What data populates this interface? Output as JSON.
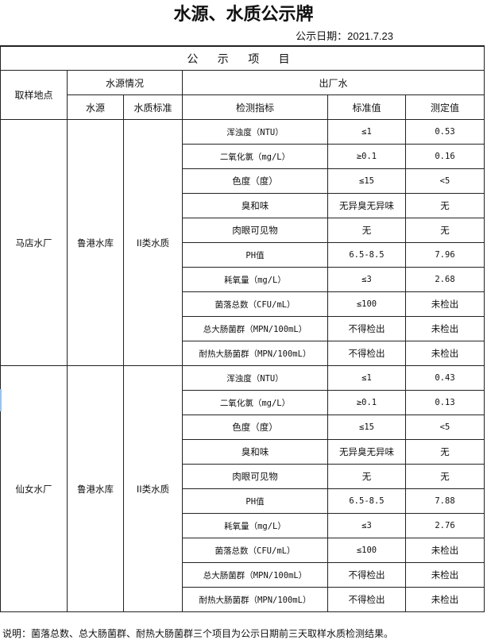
{
  "title": "水源、水质公示牌",
  "date": "公示日期：2021.7.23",
  "section": "公 示 项 目",
  "headers": {
    "location": "取样地点",
    "source_group": "水源情况",
    "output_group": "出厂水",
    "source": "水源",
    "standard_class": "水质标准",
    "indicator": "检测指标",
    "standard_value": "标准值",
    "measured_value": "测定值"
  },
  "plants": [
    {
      "name": "马店水厂",
      "source": "鲁港水库",
      "class": "II类水质",
      "rows": [
        [
          "浑浊度（NTU）",
          "≤1",
          "0.53"
        ],
        [
          "二氧化氯（mg/L）",
          "≥0.1",
          "0.16"
        ],
        [
          "色度（度）",
          "≤15",
          "<5"
        ],
        [
          "臭和味",
          "无异臭无异味",
          "无"
        ],
        [
          "肉眼可见物",
          "无",
          "无"
        ],
        [
          "PH值",
          "6.5-8.5",
          "7.96"
        ],
        [
          "耗氧量（mg/L）",
          "≤3",
          "2.68"
        ],
        [
          "菌落总数（CFU/mL）",
          "≤100",
          "未检出"
        ],
        [
          "总大肠菌群（MPN/100mL）",
          "不得检出",
          "未检出"
        ],
        [
          "耐热大肠菌群（MPN/100mL）",
          "不得检出",
          "未检出"
        ]
      ]
    },
    {
      "name": "仙女水厂",
      "source": "鲁港水库",
      "class": "II类水质",
      "rows": [
        [
          "浑浊度（NTU）",
          "≤1",
          "0.43"
        ],
        [
          "二氧化氯（mg/L）",
          "≥0.1",
          "0.13"
        ],
        [
          "色度（度）",
          "≤15",
          "<5"
        ],
        [
          "臭和味",
          "无异臭无异味",
          "无"
        ],
        [
          "肉眼可见物",
          "无",
          "无"
        ],
        [
          "PH值",
          "6.5-8.5",
          "7.88"
        ],
        [
          "耗氧量（mg/L）",
          "≤3",
          "2.76"
        ],
        [
          "菌落总数（CFU/mL）",
          "≤100",
          "未检出"
        ],
        [
          "总大肠菌群（MPN/100mL）",
          "不得检出",
          "未检出"
        ],
        [
          "耐热大肠菌群（MPN/100mL）",
          "不得检出",
          "未检出"
        ]
      ]
    }
  ],
  "note": "说明：菌落总数、总大肠菌群、耐热大肠菌群三个项目为公示日期前三天取样水质检测结果。"
}
